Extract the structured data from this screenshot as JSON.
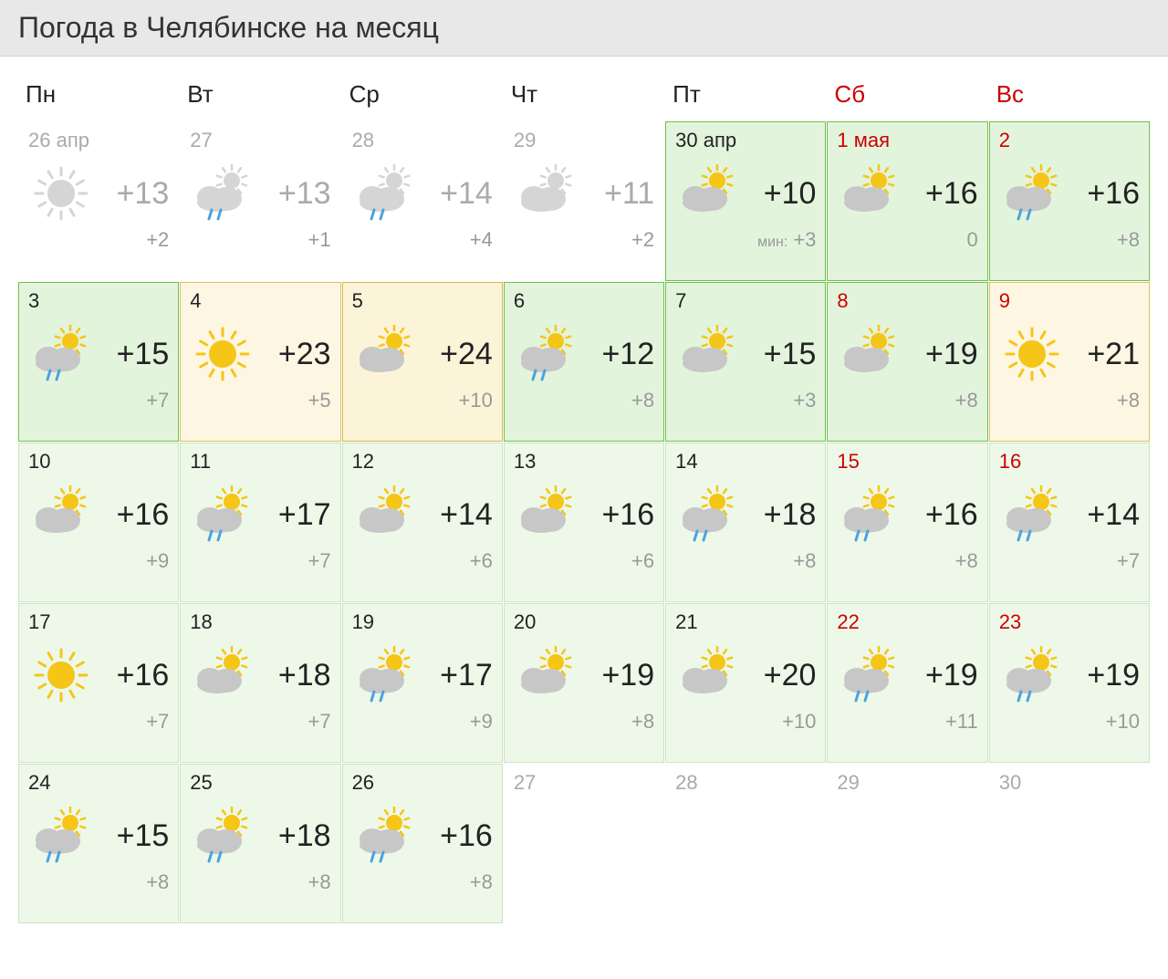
{
  "title": "Погода в Челябинске на месяц",
  "weekdays": [
    "Пн",
    "Вт",
    "Ср",
    "Чт",
    "Пт",
    "Сб",
    "Вс"
  ],
  "weekend_indices": [
    5,
    6
  ],
  "colors": {
    "header_bg": "#e8e8e8",
    "text": "#222222",
    "muted": "#aaaaaa",
    "low_text": "#999999",
    "weekend": "#cc0000",
    "bg_green_light": "#edf8e9",
    "bg_green_mid": "#e3f4dd",
    "bg_yellow": "#fdf6e3",
    "border_green": "#6cc24a",
    "border_yellow": "#e0c060",
    "sun": "#f5c518",
    "cloud": "#c7c7c7",
    "cloud_past": "#d5d5d5",
    "rain": "#4aa3df"
  },
  "cells": [
    {
      "date": "26 апр",
      "weekend": false,
      "past": true,
      "icon": "sun-grey",
      "hi": "+13",
      "lo": "+2",
      "bg": "past"
    },
    {
      "date": "27",
      "weekend": false,
      "past": true,
      "icon": "cloud-sun-rain-grey",
      "hi": "+13",
      "lo": "+1",
      "bg": "past"
    },
    {
      "date": "28",
      "weekend": false,
      "past": true,
      "icon": "cloud-sun-rain-grey",
      "hi": "+14",
      "lo": "+4",
      "bg": "past"
    },
    {
      "date": "29",
      "weekend": false,
      "past": true,
      "icon": "cloud-sun-grey",
      "hi": "+11",
      "lo": "+2",
      "bg": "past"
    },
    {
      "date": "30 апр",
      "weekend": false,
      "past": false,
      "icon": "cloud-sun",
      "hi": "+10",
      "lo": "+3",
      "bg": "green-mid",
      "min_prefix": "мин:"
    },
    {
      "date": "1 мая",
      "weekend": true,
      "past": false,
      "icon": "cloud-sun",
      "hi": "+16",
      "lo": "0",
      "bg": "green-mid"
    },
    {
      "date": "2",
      "weekend": true,
      "past": false,
      "icon": "cloud-sun-rain",
      "hi": "+16",
      "lo": "+8",
      "bg": "green-mid"
    },
    {
      "date": "3",
      "weekend": false,
      "past": false,
      "icon": "cloud-sun-rain",
      "hi": "+15",
      "lo": "+7",
      "bg": "green-mid"
    },
    {
      "date": "4",
      "weekend": false,
      "past": false,
      "icon": "sun",
      "hi": "+23",
      "lo": "+5",
      "bg": "yellow"
    },
    {
      "date": "5",
      "weekend": false,
      "past": false,
      "icon": "cloud-sun",
      "hi": "+24",
      "lo": "+10",
      "bg": "yellow-strong"
    },
    {
      "date": "6",
      "weekend": false,
      "past": false,
      "icon": "cloud-sun-rain",
      "hi": "+12",
      "lo": "+8",
      "bg": "green-mid"
    },
    {
      "date": "7",
      "weekend": false,
      "past": false,
      "icon": "cloud-sun",
      "hi": "+15",
      "lo": "+3",
      "bg": "green-mid"
    },
    {
      "date": "8",
      "weekend": true,
      "past": false,
      "icon": "cloud-sun",
      "hi": "+19",
      "lo": "+8",
      "bg": "green-mid"
    },
    {
      "date": "9",
      "weekend": true,
      "past": false,
      "icon": "sun",
      "hi": "+21",
      "lo": "+8",
      "bg": "yellow"
    },
    {
      "date": "10",
      "weekend": false,
      "past": false,
      "icon": "cloud-sun",
      "hi": "+16",
      "lo": "+9",
      "bg": "green-light"
    },
    {
      "date": "11",
      "weekend": false,
      "past": false,
      "icon": "cloud-sun-rain",
      "hi": "+17",
      "lo": "+7",
      "bg": "green-light"
    },
    {
      "date": "12",
      "weekend": false,
      "past": false,
      "icon": "cloud-sun",
      "hi": "+14",
      "lo": "+6",
      "bg": "green-light"
    },
    {
      "date": "13",
      "weekend": false,
      "past": false,
      "icon": "cloud-sun",
      "hi": "+16",
      "lo": "+6",
      "bg": "green-light"
    },
    {
      "date": "14",
      "weekend": false,
      "past": false,
      "icon": "cloud-sun-rain",
      "hi": "+18",
      "lo": "+8",
      "bg": "green-light"
    },
    {
      "date": "15",
      "weekend": true,
      "past": false,
      "icon": "cloud-sun-rain",
      "hi": "+16",
      "lo": "+8",
      "bg": "green-light"
    },
    {
      "date": "16",
      "weekend": true,
      "past": false,
      "icon": "cloud-sun-rain",
      "hi": "+14",
      "lo": "+7",
      "bg": "green-light"
    },
    {
      "date": "17",
      "weekend": false,
      "past": false,
      "icon": "sun",
      "hi": "+16",
      "lo": "+7",
      "bg": "green-light"
    },
    {
      "date": "18",
      "weekend": false,
      "past": false,
      "icon": "cloud-sun",
      "hi": "+18",
      "lo": "+7",
      "bg": "green-light"
    },
    {
      "date": "19",
      "weekend": false,
      "past": false,
      "icon": "cloud-sun-rain",
      "hi": "+17",
      "lo": "+9",
      "bg": "green-light"
    },
    {
      "date": "20",
      "weekend": false,
      "past": false,
      "icon": "cloud-sun",
      "hi": "+19",
      "lo": "+8",
      "bg": "green-light"
    },
    {
      "date": "21",
      "weekend": false,
      "past": false,
      "icon": "cloud-sun",
      "hi": "+20",
      "lo": "+10",
      "bg": "green-light"
    },
    {
      "date": "22",
      "weekend": true,
      "past": false,
      "icon": "cloud-sun-rain",
      "hi": "+19",
      "lo": "+11",
      "bg": "green-light"
    },
    {
      "date": "23",
      "weekend": true,
      "past": false,
      "icon": "cloud-sun-rain",
      "hi": "+19",
      "lo": "+10",
      "bg": "green-light"
    },
    {
      "date": "24",
      "weekend": false,
      "past": false,
      "icon": "cloud-sun-rain",
      "hi": "+15",
      "lo": "+8",
      "bg": "green-light"
    },
    {
      "date": "25",
      "weekend": false,
      "past": false,
      "icon": "cloud-sun-rain",
      "hi": "+18",
      "lo": "+8",
      "bg": "green-light"
    },
    {
      "date": "26",
      "weekend": false,
      "past": false,
      "icon": "cloud-sun-rain",
      "hi": "+16",
      "lo": "+8",
      "bg": "green-light"
    },
    {
      "date": "27",
      "weekend": false,
      "past": false,
      "icon": null,
      "hi": "",
      "lo": "",
      "bg": "empty-future"
    },
    {
      "date": "28",
      "weekend": false,
      "past": false,
      "icon": null,
      "hi": "",
      "lo": "",
      "bg": "empty-future"
    },
    {
      "date": "29",
      "weekend": true,
      "past": false,
      "icon": null,
      "hi": "",
      "lo": "",
      "bg": "empty-future"
    },
    {
      "date": "30",
      "weekend": true,
      "past": false,
      "icon": null,
      "hi": "",
      "lo": "",
      "bg": "empty-future"
    }
  ]
}
